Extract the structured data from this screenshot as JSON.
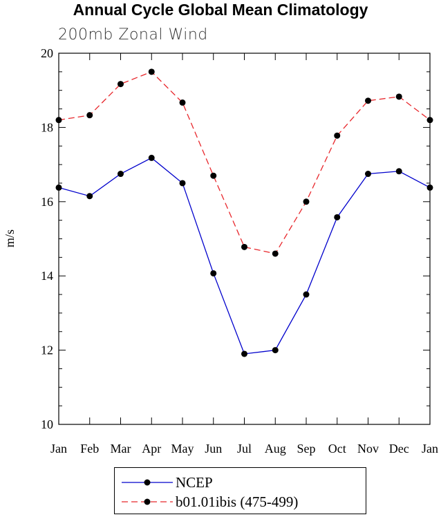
{
  "chart_data": {
    "type": "line",
    "title": "Annual Cycle Global Mean Climatology",
    "subtitle": "200mb Zonal Wind",
    "ylabel": "m/s",
    "xlabel": "",
    "ylim": [
      10,
      20
    ],
    "yticks": [
      10,
      12,
      14,
      16,
      18,
      20
    ],
    "categories": [
      "Jan",
      "Feb",
      "Mar",
      "Apr",
      "May",
      "Jun",
      "Jul",
      "Aug",
      "Sep",
      "Oct",
      "Nov",
      "Dec",
      "Jan"
    ],
    "series": [
      {
        "name": "NCEP",
        "color": "#0000cc",
        "dash": "solid",
        "values": [
          16.38,
          16.15,
          16.75,
          17.18,
          16.5,
          14.07,
          11.9,
          12.0,
          13.5,
          15.58,
          16.75,
          16.82,
          16.38
        ]
      },
      {
        "name": "b01.01ibis (475-499)",
        "color": "#e8262b",
        "dash": "dashed",
        "values": [
          18.2,
          18.33,
          19.17,
          19.5,
          18.67,
          16.7,
          14.78,
          14.6,
          16.0,
          17.78,
          18.72,
          18.83,
          18.2
        ]
      }
    ],
    "legend_placement": "bottom"
  }
}
